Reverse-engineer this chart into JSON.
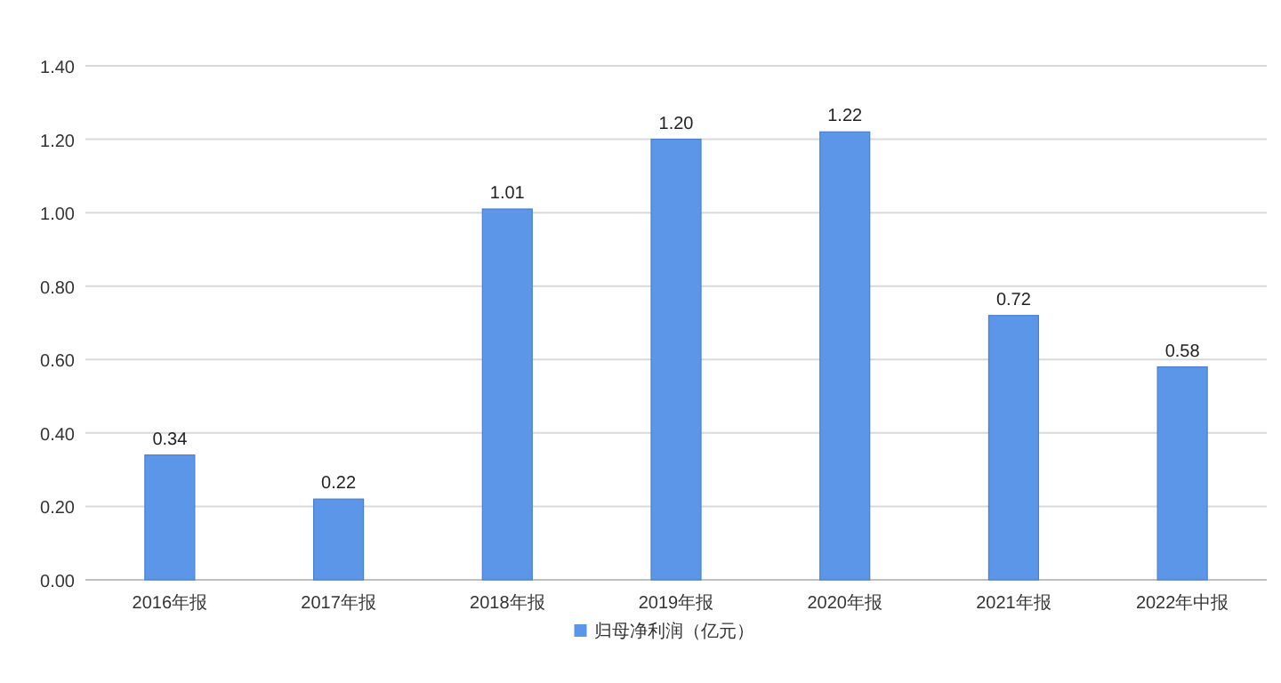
{
  "chart_data": {
    "type": "bar",
    "categories": [
      "2016年报",
      "2017年报",
      "2018年报",
      "2019年报",
      "2020年报",
      "2021年报",
      "2022年中报"
    ],
    "series": [
      {
        "name": "归母净利润（亿元）",
        "color": "#5b96e8",
        "values": [
          0.34,
          0.22,
          1.01,
          1.2,
          1.22,
          0.72,
          0.58
        ],
        "value_labels": [
          "0.34",
          "0.22",
          "1.01",
          "1.20",
          "1.22",
          "0.72",
          "0.58"
        ]
      }
    ],
    "ylim": [
      0,
      1.4
    ],
    "yticks": [
      {
        "value": 0,
        "label": "0.00"
      },
      {
        "value": 0.2,
        "label": "0.20"
      },
      {
        "value": 0.4,
        "label": "0.40"
      },
      {
        "value": 0.6,
        "label": "0.60"
      },
      {
        "value": 0.8,
        "label": "0.80"
      },
      {
        "value": 1.0,
        "label": "1.00"
      },
      {
        "value": 1.2,
        "label": "1.20"
      },
      {
        "value": 1.4,
        "label": "1.40"
      }
    ],
    "grid": "y",
    "legend": "bottom"
  }
}
